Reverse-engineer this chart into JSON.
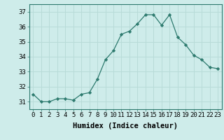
{
  "x": [
    0,
    1,
    2,
    3,
    4,
    5,
    6,
    7,
    8,
    9,
    10,
    11,
    12,
    13,
    14,
    15,
    16,
    17,
    18,
    19,
    20,
    21,
    22,
    23
  ],
  "y": [
    31.5,
    31.0,
    31.0,
    31.2,
    31.2,
    31.1,
    31.5,
    31.6,
    32.5,
    33.8,
    34.4,
    35.5,
    35.7,
    36.2,
    36.8,
    36.8,
    36.1,
    36.8,
    35.3,
    34.8,
    34.1,
    33.8,
    33.3,
    33.2
  ],
  "line_color": "#2d7a6e",
  "marker": "D",
  "marker_size": 2.2,
  "bg_color": "#ceecea",
  "grid_color": "#b8dbd8",
  "ylabel_values": [
    31,
    32,
    33,
    34,
    35,
    36,
    37
  ],
  "ylim": [
    30.5,
    37.5
  ],
  "xlim": [
    -0.5,
    23.5
  ],
  "xlabel": "Humidex (Indice chaleur)",
  "xlabel_fontsize": 7.5,
  "tick_fontsize": 6.5,
  "title": ""
}
